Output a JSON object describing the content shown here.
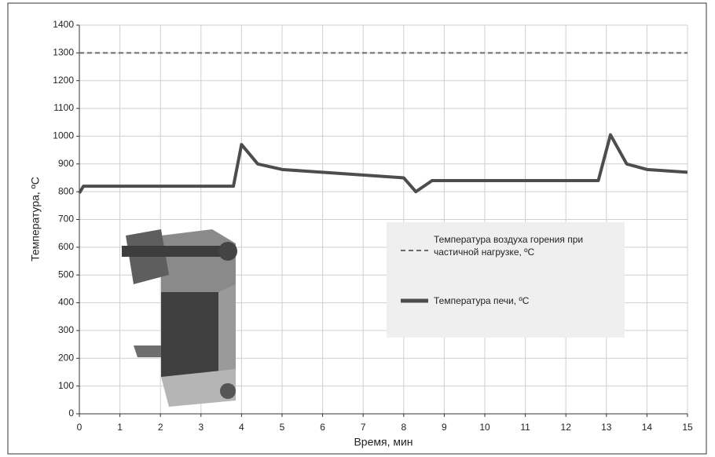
{
  "chart_data": {
    "type": "line",
    "xlabel": "Время, мин",
    "ylabel": "Температура, ºC",
    "xlim": [
      0,
      15
    ],
    "xticks": [
      0,
      1,
      2,
      3,
      4,
      5,
      6,
      7,
      8,
      9,
      10,
      11,
      12,
      13,
      14,
      15
    ],
    "ylim": [
      0,
      1400
    ],
    "yticks": [
      0,
      100,
      200,
      300,
      400,
      500,
      600,
      700,
      800,
      900,
      1000,
      1100,
      1200,
      1300,
      1400
    ],
    "grid": true,
    "series": [
      {
        "name": "Температура воздуха горения при частичной нагрузке, ºC",
        "color": "#6b6b6b",
        "dash": true,
        "x": [
          0,
          15
        ],
        "values": [
          1300,
          1300
        ]
      },
      {
        "name": "Температура печи, ºC",
        "color": "#4d4d4d",
        "dash": false,
        "x": [
          0,
          0.1,
          3.8,
          4,
          4.4,
          5,
          8,
          8.3,
          8.7,
          12.8,
          13.1,
          13.5,
          14,
          15
        ],
        "values": [
          795,
          820,
          820,
          970,
          900,
          880,
          850,
          800,
          840,
          840,
          1005,
          900,
          880,
          870
        ]
      }
    ]
  }
}
